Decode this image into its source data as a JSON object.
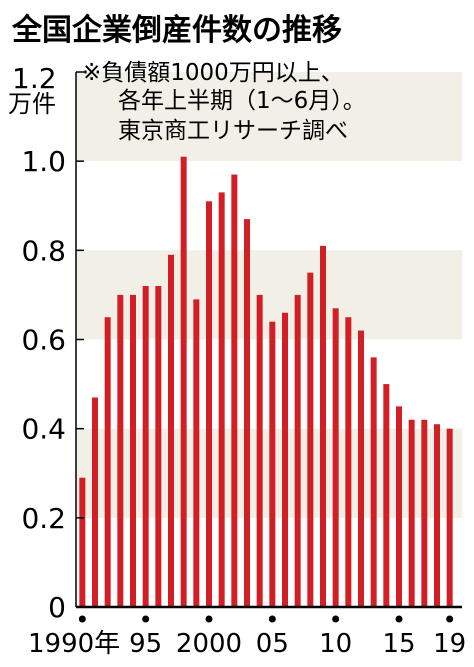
{
  "chart_data": {
    "type": "bar",
    "title": "全国企業倒産件数の推移",
    "ylabel": "万件",
    "note_lines": [
      "※負債額1000万円以上、",
      "各年上半期（1～6月）。",
      "東京商工リサーチ調べ"
    ],
    "ylim": [
      0,
      1.2
    ],
    "y_ticks": [
      "0",
      "0.2",
      "0.4",
      "0.6",
      "0.8",
      "1.0",
      "1.2"
    ],
    "x_tick_labels": [
      {
        "year": 1990,
        "label": "1990年"
      },
      {
        "year": 1995,
        "label": "95"
      },
      {
        "year": 2000,
        "label": "2000"
      },
      {
        "year": 2005,
        "label": "05"
      },
      {
        "year": 2010,
        "label": "10"
      },
      {
        "year": 2015,
        "label": "15"
      },
      {
        "year": 2019,
        "label": "19"
      }
    ],
    "categories": [
      1990,
      1991,
      1992,
      1993,
      1994,
      1995,
      1996,
      1997,
      1998,
      1999,
      2000,
      2001,
      2002,
      2003,
      2004,
      2005,
      2006,
      2007,
      2008,
      2009,
      2010,
      2011,
      2012,
      2013,
      2014,
      2015,
      2016,
      2017,
      2018,
      2019
    ],
    "values": [
      0.29,
      0.47,
      0.65,
      0.7,
      0.7,
      0.72,
      0.72,
      0.79,
      1.01,
      0.69,
      0.91,
      0.93,
      0.97,
      0.87,
      0.7,
      0.64,
      0.66,
      0.7,
      0.75,
      0.81,
      0.67,
      0.65,
      0.62,
      0.56,
      0.5,
      0.45,
      0.42,
      0.42,
      0.41,
      0.4
    ],
    "grid": "alternating bands",
    "colors": {
      "bar": "#d21f26",
      "band": "#f1efe6",
      "axis": "#000000"
    }
  }
}
